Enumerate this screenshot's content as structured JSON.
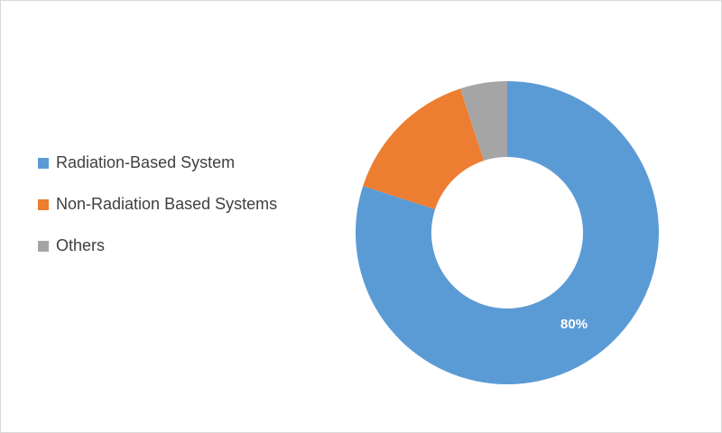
{
  "chart_data": {
    "type": "donut",
    "categories": [
      "Radiation-Based System",
      "Non-Radiation Based Systems",
      "Others"
    ],
    "values": [
      80,
      15,
      5
    ],
    "value_labels": [
      "80%",
      null,
      null
    ],
    "colors": [
      "#5b9bd5",
      "#ed7d31",
      "#a5a5a5"
    ],
    "legend": "left"
  }
}
